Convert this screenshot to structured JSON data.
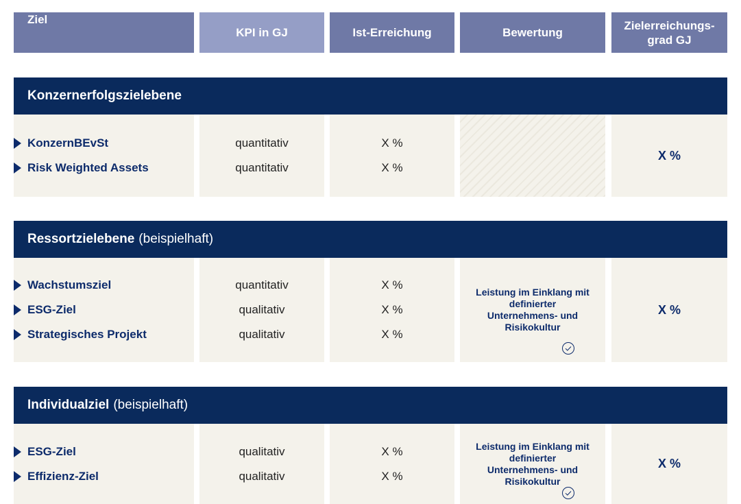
{
  "header": {
    "columns": [
      [
        "Ziel"
      ],
      [
        "KPI in GJ"
      ],
      [
        "Ist-Erreichung"
      ],
      [
        "Bewertung"
      ],
      [
        "Zielerreichungs-",
        "grad GJ"
      ]
    ]
  },
  "sections": [
    {
      "title": "Konzernerfolgszielebene",
      "goals": [
        {
          "name": "KonzernBEvSt",
          "kpi": "quantitativ",
          "ist": "X %"
        },
        {
          "name": "Risk Weighted Assets",
          "kpi": "quantitativ",
          "ist": "X %"
        }
      ],
      "grad": "X %"
    },
    {
      "title": "Ressortzielebene",
      "subtitle": "(beispielhaft)",
      "goals": [
        {
          "name": "Wachstumsziel",
          "kpi": "quantitativ",
          "ist": "X %"
        },
        {
          "name": "ESG-Ziel",
          "kpi": "qualitativ",
          "ist": "X %"
        },
        {
          "name": "Strategisches Projekt",
          "kpi": "qualitativ",
          "ist": "X %"
        }
      ],
      "bewertung": "Leistung im Einklang mit definierter Unternehmens- und Risikokultur",
      "grad": "X %"
    },
    {
      "title": "Individualziel",
      "subtitle": "(beispielhaft)",
      "goals": [
        {
          "name": "ESG-Ziel",
          "kpi": "qualitativ",
          "ist": "X %"
        },
        {
          "name": "Effizienz-Ziel",
          "kpi": "qualitativ",
          "ist": "X %"
        }
      ],
      "bewertung": "Leistung im Einklang mit definierter Unternehmens- und Risikokultur",
      "grad": "X %"
    }
  ]
}
